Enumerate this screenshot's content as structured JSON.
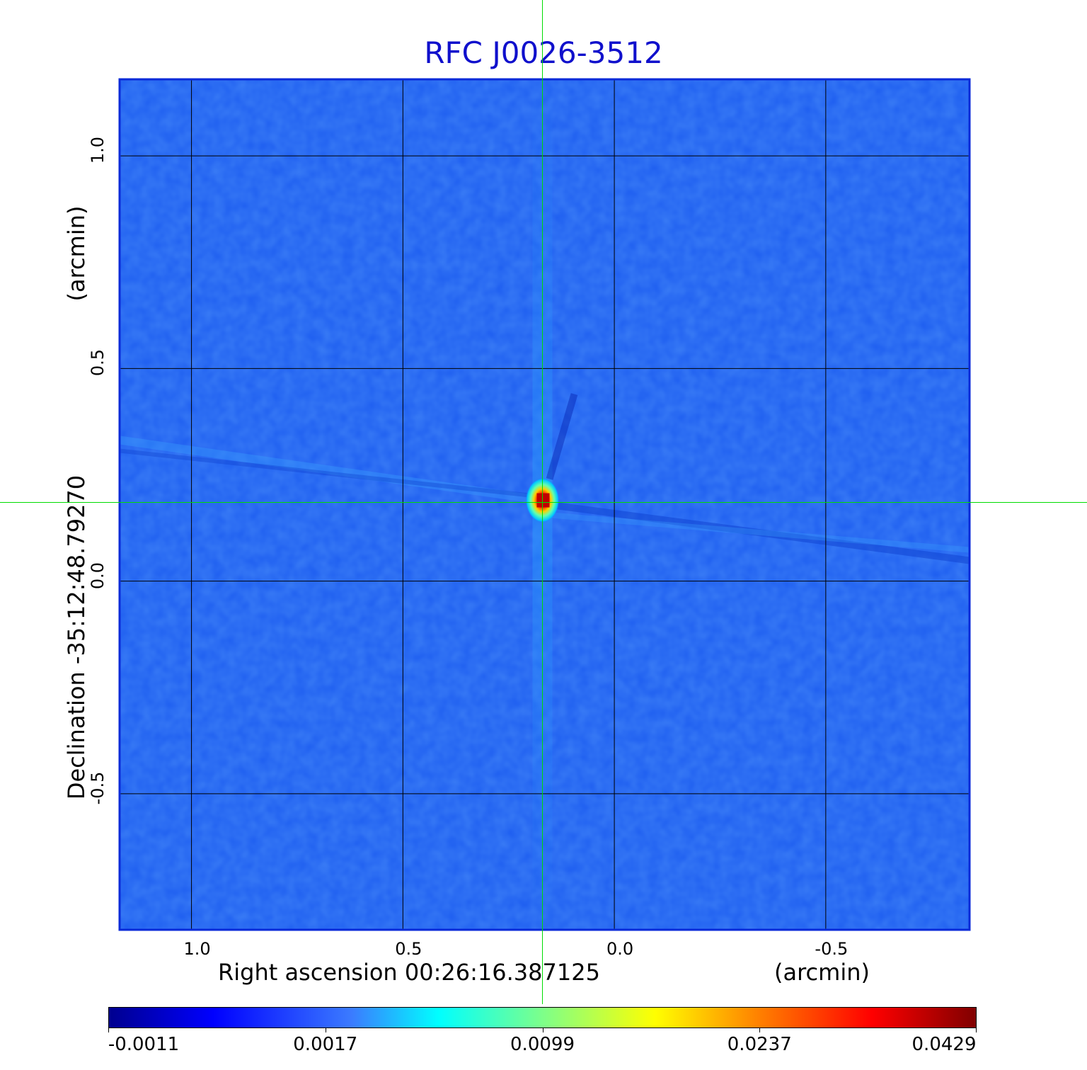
{
  "chart_data": {
    "type": "heatmap",
    "title": "RFC J0026-3512",
    "xlabel": "Right ascension  00:26:16.387125",
    "xlabel_unit": "(arcmin)",
    "ylabel": "Declination  -35:12:48.79270",
    "ylabel_unit": "(arcmin)",
    "xlim": [
      1.17,
      -0.84
    ],
    "ylim": [
      -0.82,
      1.18
    ],
    "x_ticks": [
      "1.0",
      "0.5",
      "0.0",
      "-0.5"
    ],
    "y_ticks": [
      "1.0",
      "0.5",
      "0.0",
      "-0.5"
    ],
    "x_tick_values": [
      1.0,
      0.5,
      0.0,
      -0.5
    ],
    "y_tick_values": [
      1.0,
      0.5,
      0.0,
      -0.5
    ],
    "grid": true,
    "peak": {
      "x": 0.17,
      "y": 0.19,
      "value": 0.0429
    },
    "crosshair": {
      "x": 0.17,
      "y": 0.185
    },
    "colorbar": {
      "ticks": [
        "-0.0011",
        "0.0017",
        "0.0099",
        "0.0237",
        "0.0429"
      ],
      "colormap": "jet"
    },
    "colors": {
      "title": "#1010cc",
      "crosshair": "#00dd00",
      "grid": "#000000",
      "background": "#1e5ef0"
    }
  }
}
